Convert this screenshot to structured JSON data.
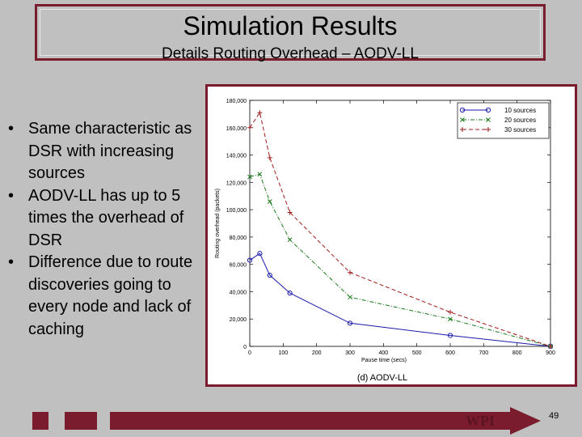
{
  "slide": {
    "title": "Simulation Results",
    "subtitle": "Details Routing Overhead –  AODV-LL",
    "bullets": [
      "Same characteristic as DSR with increasing sources",
      "AODV-LL has up to 5 times the overhead of DSR",
      "Difference due to route discoveries going to every node and lack of caching"
    ],
    "footer": {
      "logo_text": "WPI",
      "page_number": "49"
    },
    "colors": {
      "accent": "#7b1c2e",
      "background": "#c0c0c0"
    }
  },
  "chart_data": {
    "type": "line",
    "caption": "(d)  AODV-LL",
    "xlabel": "Pause time (secs)",
    "ylabel": "Routing overhead (packets)",
    "xlim": [
      0,
      900
    ],
    "ylim": [
      0,
      180000
    ],
    "x_ticks": [
      0,
      100,
      200,
      300,
      400,
      500,
      600,
      700,
      800,
      900
    ],
    "y_ticks": [
      0,
      20000,
      40000,
      60000,
      80000,
      100000,
      120000,
      140000,
      160000,
      180000
    ],
    "y_tick_labels": [
      "0",
      "20,000",
      "40,000",
      "60,000",
      "80,000",
      "100,000",
      "120,000",
      "140,000",
      "160,000",
      "180,000"
    ],
    "legend_position": "top-right",
    "series": [
      {
        "name": "10 sources",
        "color": "#1a1aaa",
        "dash": "solid",
        "marker": "circle",
        "x": [
          0,
          30,
          60,
          120,
          300,
          600,
          900
        ],
        "y": [
          63000,
          68000,
          52000,
          39000,
          17000,
          8000,
          0
        ]
      },
      {
        "name": "20 sources",
        "color": "#1a7a1a",
        "dash": "dashdot",
        "marker": "x",
        "x": [
          0,
          30,
          60,
          120,
          300,
          600,
          900
        ],
        "y": [
          124000,
          126000,
          106000,
          78000,
          36000,
          20000,
          0
        ]
      },
      {
        "name": "30 sources",
        "color": "#a01a1a",
        "dash": "dash",
        "marker": "plus",
        "x": [
          0,
          30,
          60,
          120,
          300,
          600,
          900
        ],
        "y": [
          160000,
          171000,
          138000,
          98000,
          54000,
          25000,
          0
        ]
      }
    ]
  }
}
